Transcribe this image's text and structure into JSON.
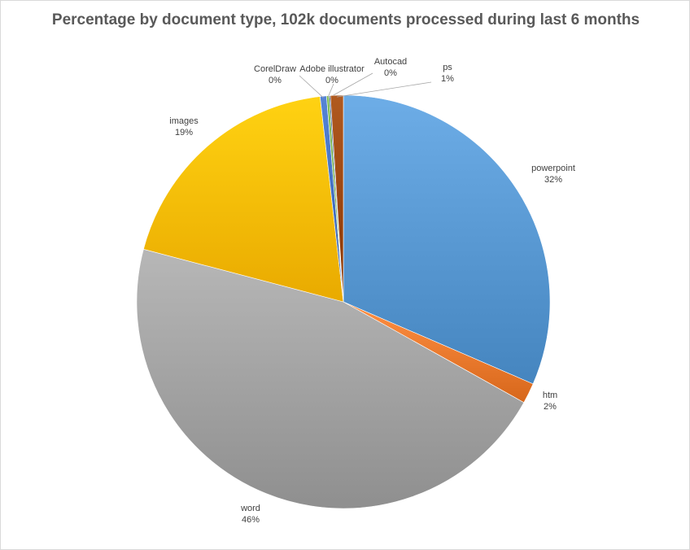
{
  "chart_data": {
    "type": "pie",
    "title": "Percentage by document type, 102k documents processed during last 6 months",
    "unit": "%",
    "slices": [
      {
        "label": "powerpoint",
        "value": 31.5,
        "display": "32%",
        "color": "#5b9bd5"
      },
      {
        "label": "htm",
        "value": 1.6,
        "display": "2%",
        "color": "#ed7d31"
      },
      {
        "label": "word",
        "value": 46.0,
        "display": "46%",
        "color": "#a5a5a5"
      },
      {
        "label": "images",
        "value": 19.1,
        "display": "19%",
        "color": "#ffc000"
      },
      {
        "label": "CorelDraw",
        "value": 0.5,
        "display": "0%",
        "color": "#4472c4"
      },
      {
        "label": "Adobe illustrator",
        "value": 0.2,
        "display": "0%",
        "color": "#70ad47"
      },
      {
        "label": "Autocad",
        "value": 0.1,
        "display": "0%",
        "color": "#264478"
      },
      {
        "label": "ps",
        "value": 1.0,
        "display": "1%",
        "color": "#9e480e"
      }
    ],
    "start_angle_deg": 0,
    "direction": "clockwise",
    "legend": "none",
    "data_labels": "outside with leader lines"
  }
}
